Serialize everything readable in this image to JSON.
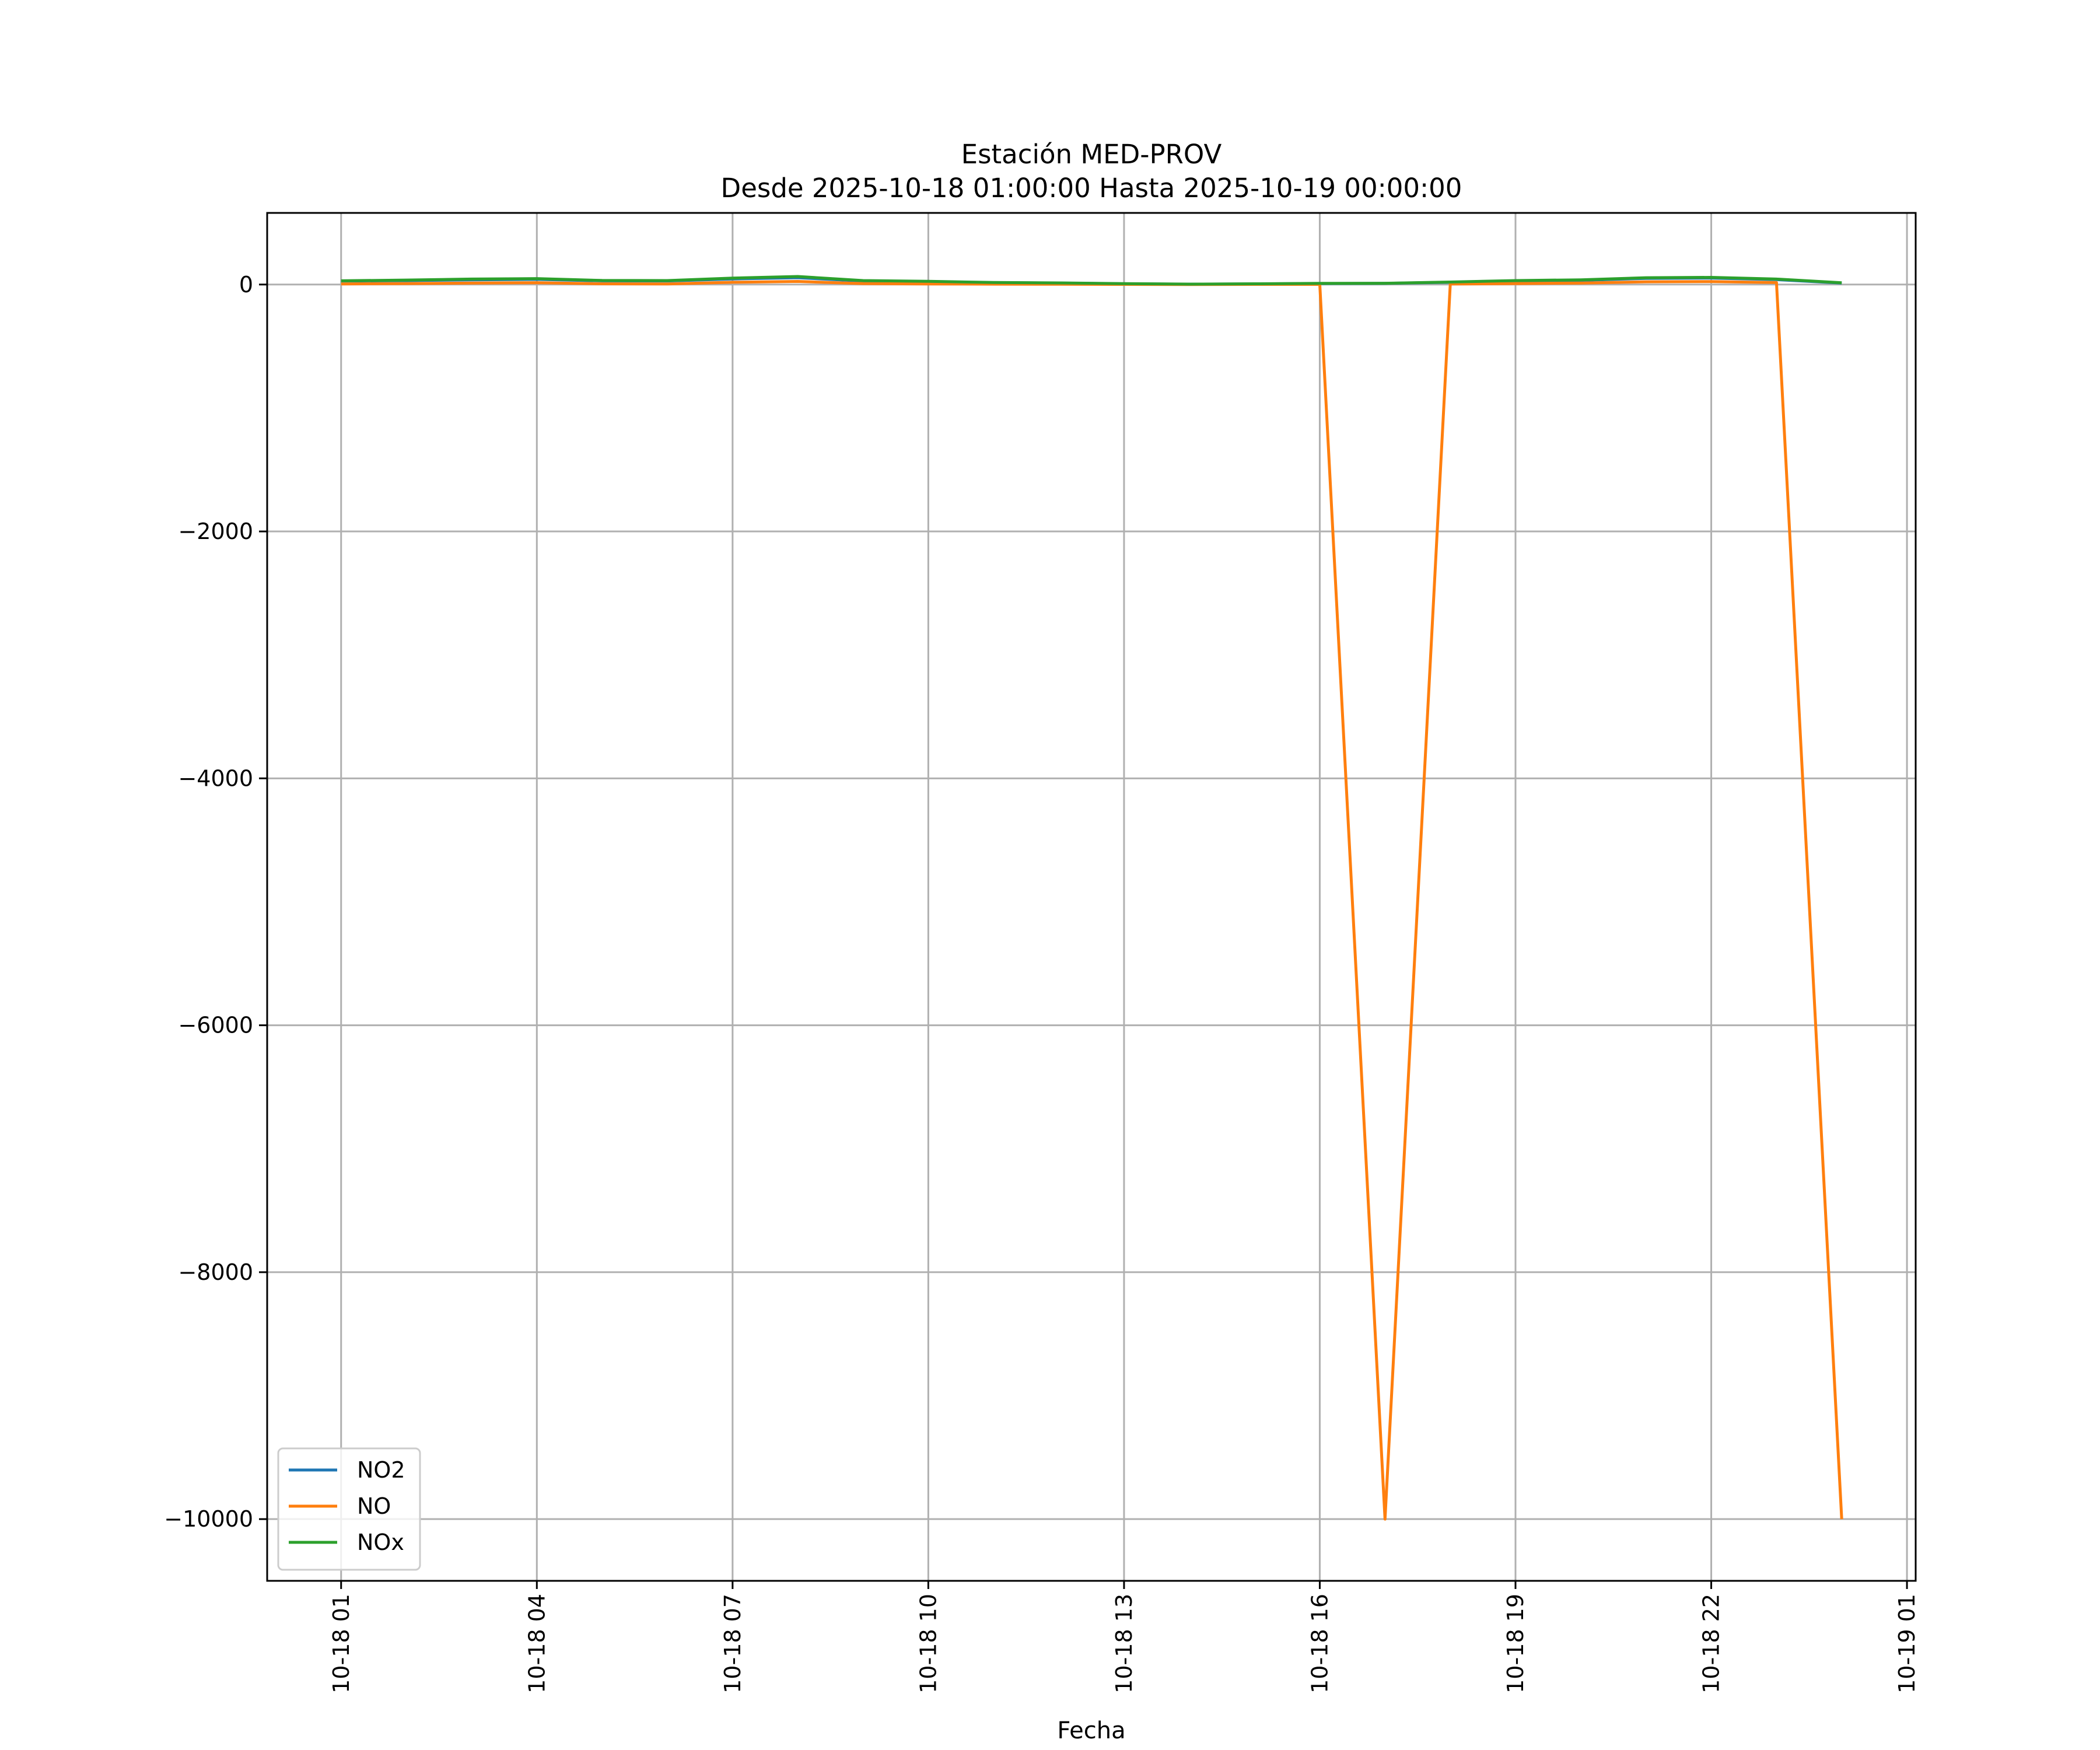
{
  "chart_data": {
    "type": "line",
    "title": "Estación MED-PROV",
    "subtitle": "Desde 2025-10-18 01:00:00 Hasta 2025-10-19 00:00:00",
    "xlabel": "Fecha",
    "ylabel": "",
    "x": [
      "2025-10-18 01:00",
      "2025-10-18 02:00",
      "2025-10-18 03:00",
      "2025-10-18 04:00",
      "2025-10-18 05:00",
      "2025-10-18 06:00",
      "2025-10-18 07:00",
      "2025-10-18 08:00",
      "2025-10-18 09:00",
      "2025-10-18 10:00",
      "2025-10-18 11:00",
      "2025-10-18 12:00",
      "2025-10-18 13:00",
      "2025-10-18 14:00",
      "2025-10-18 15:00",
      "2025-10-18 16:00",
      "2025-10-18 17:00",
      "2025-10-18 18:00",
      "2025-10-18 19:00",
      "2025-10-18 20:00",
      "2025-10-18 21:00",
      "2025-10-18 22:00",
      "2025-10-18 23:00",
      "2025-10-19 00:00"
    ],
    "xlim": [
      "2025-10-17 23:52",
      "2025-10-19 01:08"
    ],
    "x_ticks": [
      {
        "value": "2025-10-18 01:00",
        "label": "10-18 01"
      },
      {
        "value": "2025-10-18 04:00",
        "label": "10-18 04"
      },
      {
        "value": "2025-10-18 07:00",
        "label": "10-18 07"
      },
      {
        "value": "2025-10-18 10:00",
        "label": "10-18 10"
      },
      {
        "value": "2025-10-18 13:00",
        "label": "10-18 13"
      },
      {
        "value": "2025-10-18 16:00",
        "label": "10-18 16"
      },
      {
        "value": "2025-10-18 19:00",
        "label": "10-18 19"
      },
      {
        "value": "2025-10-18 22:00",
        "label": "10-18 22"
      },
      {
        "value": "2025-10-19 01:00",
        "label": "10-19 01"
      }
    ],
    "ylim": [
      -10500,
      580
    ],
    "y_ticks": [
      {
        "value": 0,
        "label": "0"
      },
      {
        "value": -2000,
        "label": "−2000"
      },
      {
        "value": -4000,
        "label": "−4000"
      },
      {
        "value": -6000,
        "label": "−6000"
      },
      {
        "value": -8000,
        "label": "−8000"
      },
      {
        "value": -10000,
        "label": "−10000"
      }
    ],
    "grid": true,
    "legend_position": "lower-left",
    "series": [
      {
        "name": "NO2",
        "color": "#1f77b4",
        "values": [
          28,
          32,
          38,
          42,
          30,
          29,
          45,
          55,
          28,
          22,
          15,
          12,
          6,
          3,
          5,
          8,
          9,
          18,
          28,
          34,
          50,
          52,
          40,
          12
        ]
      },
      {
        "name": "NO",
        "color": "#ff7f0e",
        "values": [
          5,
          8,
          12,
          15,
          6,
          5,
          18,
          25,
          8,
          5,
          3,
          2,
          1,
          0,
          1,
          1,
          -10000,
          4,
          8,
          12,
          22,
          24,
          16,
          -10000
        ]
      },
      {
        "name": "NOx",
        "color": "#2ca02c",
        "values": [
          30,
          36,
          44,
          48,
          33,
          32,
          52,
          65,
          32,
          26,
          17,
          13,
          7,
          3,
          6,
          9,
          10,
          20,
          32,
          38,
          55,
          58,
          44,
          14
        ]
      }
    ]
  }
}
